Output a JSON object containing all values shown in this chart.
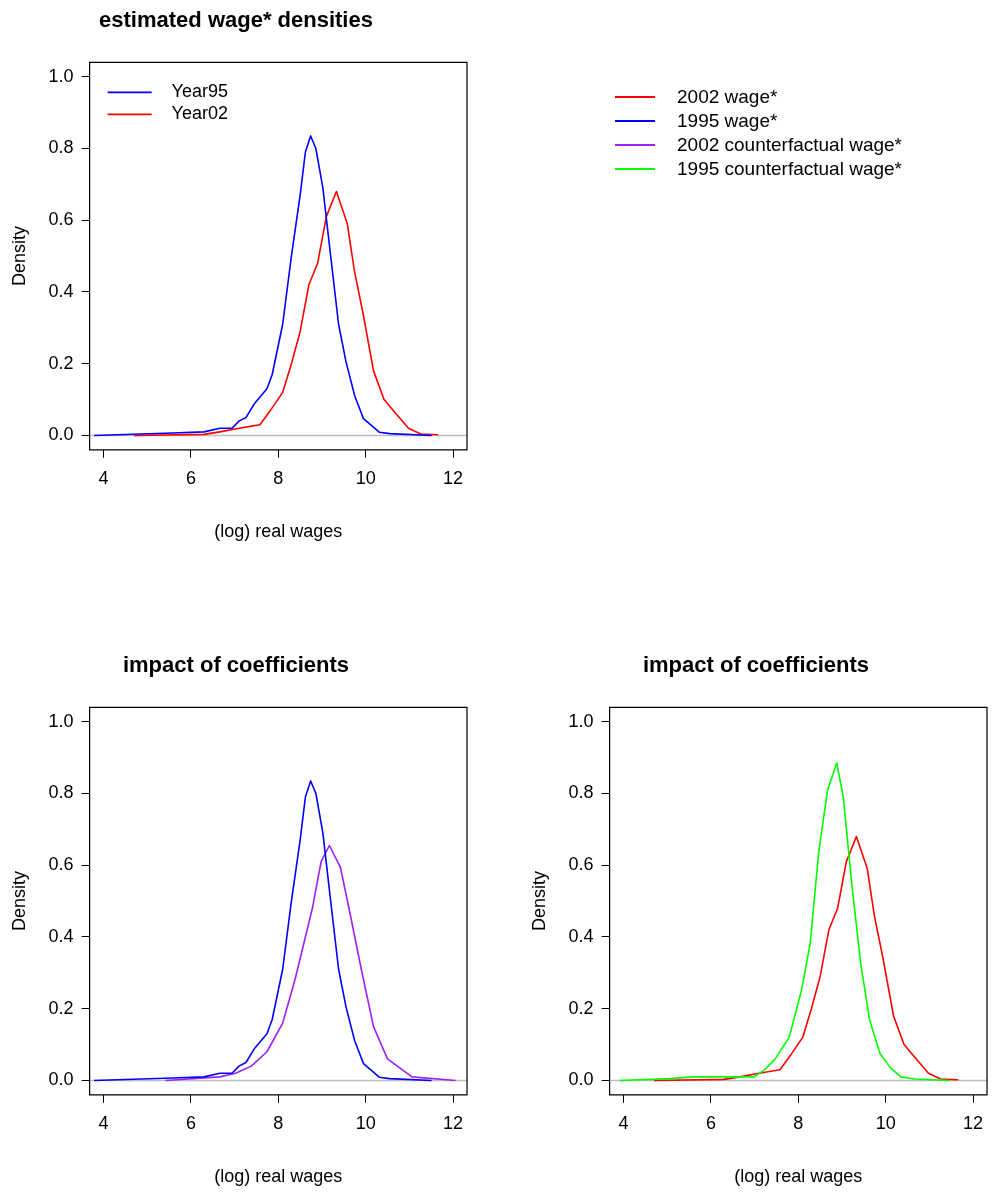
{
  "chart_data": [
    {
      "type": "line",
      "title": "estimated wage* densities",
      "xlabel": "(log) real wages",
      "ylabel": "Density",
      "xlim": [
        3.68,
        12.32
      ],
      "ylim": [
        -0.04,
        1.04
      ],
      "xticks": [
        4,
        6,
        8,
        10,
        12
      ],
      "yticks": [
        {
          "value": 0,
          "label": "0.0"
        },
        {
          "value": 0.2,
          "label": "0.2"
        },
        {
          "value": 0.4,
          "label": "0.4"
        },
        {
          "value": 0.6,
          "label": "0.6"
        },
        {
          "value": 0.8,
          "label": "0.8"
        },
        {
          "value": 1,
          "label": "1.0"
        }
      ],
      "legend": "top left",
      "grid": false,
      "marker": "none",
      "line_style": "solid",
      "ref_lines": [
        {
          "axis": "y",
          "value": 0,
          "color": "#bebebe"
        }
      ],
      "series": [
        {
          "name": "Year95",
          "color": "#0000ff",
          "x": [
            3.78,
            5.58,
            6.3,
            6.66,
            6.94,
            7.1,
            7.26,
            7.46,
            7.74,
            7.86,
            8.1,
            8.3,
            8.5,
            8.62,
            8.74,
            8.86,
            9.02,
            9.18,
            9.38,
            9.55,
            9.75,
            9.95,
            10.31,
            10.55,
            11.51
          ],
          "values": [
            0,
            0.007,
            0.01,
            0.02,
            0.02,
            0.04,
            0.05,
            0.09,
            0.13,
            0.17,
            0.31,
            0.5,
            0.67,
            0.79,
            0.835,
            0.8,
            0.69,
            0.52,
            0.31,
            0.205,
            0.11,
            0.047,
            0.009,
            0.005,
            0
          ]
        },
        {
          "name": "Year02",
          "color": "#ff0000",
          "x": [
            4.7,
            6.3,
            6.66,
            7.1,
            7.58,
            7.82,
            8.1,
            8.3,
            8.5,
            8.7,
            8.9,
            9.1,
            9.33,
            9.58,
            9.74,
            9.94,
            10.18,
            10.42,
            10.7,
            10.98,
            11.26,
            11.66
          ],
          "values": [
            0,
            0.003,
            0.01,
            0.02,
            0.03,
            0.07,
            0.12,
            0.2,
            0.29,
            0.42,
            0.48,
            0.61,
            0.68,
            0.59,
            0.46,
            0.34,
            0.18,
            0.1,
            0.06,
            0.02,
            0.004,
            0.002
          ]
        }
      ]
    },
    {
      "type": "line",
      "title": "impact of coefficients",
      "xlabel": "(log) real wages",
      "ylabel": "Density",
      "xlim": [
        3.68,
        12.32
      ],
      "ylim": [
        -0.04,
        1.04
      ],
      "xticks": [
        4,
        6,
        8,
        10,
        12
      ],
      "yticks": [
        {
          "value": 0,
          "label": "0.0"
        },
        {
          "value": 0.2,
          "label": "0.2"
        },
        {
          "value": 0.4,
          "label": "0.4"
        },
        {
          "value": 0.6,
          "label": "0.6"
        },
        {
          "value": 0.8,
          "label": "0.8"
        },
        {
          "value": 1,
          "label": "1.0"
        }
      ],
      "grid": false,
      "marker": "none",
      "line_style": "solid",
      "ref_lines": [
        {
          "axis": "y",
          "value": 0,
          "color": "#bebebe"
        }
      ],
      "series": [
        {
          "color": "#0000ff",
          "x": [
            3.78,
            5.58,
            6.3,
            6.66,
            6.94,
            7.1,
            7.26,
            7.46,
            7.74,
            7.86,
            8.1,
            8.3,
            8.5,
            8.62,
            8.74,
            8.86,
            9.02,
            9.18,
            9.38,
            9.55,
            9.75,
            9.95,
            10.31,
            10.55,
            11.51
          ],
          "values": [
            0,
            0.007,
            0.01,
            0.02,
            0.02,
            0.04,
            0.05,
            0.09,
            0.13,
            0.17,
            0.31,
            0.5,
            0.67,
            0.79,
            0.835,
            0.8,
            0.69,
            0.52,
            0.31,
            0.205,
            0.11,
            0.047,
            0.009,
            0.005,
            0
          ]
        },
        {
          "color": "#a020f0",
          "x": [
            5.42,
            6.66,
            7.02,
            7.38,
            7.74,
            8.1,
            8.38,
            8.62,
            8.78,
            8.98,
            9.17,
            9.42,
            9.66,
            9.9,
            10.18,
            10.5,
            11.06,
            12.06
          ],
          "values": [
            0,
            0.01,
            0.02,
            0.04,
            0.08,
            0.16,
            0.28,
            0.4,
            0.48,
            0.61,
            0.655,
            0.595,
            0.455,
            0.31,
            0.15,
            0.06,
            0.01,
            0
          ]
        }
      ]
    },
    {
      "type": "line",
      "title": "impact of coefficients",
      "xlabel": "(log) real wages",
      "ylabel": "Density",
      "xlim": [
        3.68,
        12.32
      ],
      "ylim": [
        -0.04,
        1.04
      ],
      "xticks": [
        4,
        6,
        8,
        10,
        12
      ],
      "yticks": [
        {
          "value": 0,
          "label": "0.0"
        },
        {
          "value": 0.2,
          "label": "0.2"
        },
        {
          "value": 0.4,
          "label": "0.4"
        },
        {
          "value": 0.6,
          "label": "0.6"
        },
        {
          "value": 0.8,
          "label": "0.8"
        },
        {
          "value": 1,
          "label": "1.0"
        }
      ],
      "grid": false,
      "marker": "none",
      "line_style": "solid",
      "ref_lines": [
        {
          "axis": "y",
          "value": 0,
          "color": "#bebebe"
        }
      ],
      "series": [
        {
          "color": "#00ff00",
          "x": [
            3.91,
            5.07,
            5.59,
            6.51,
            6.99,
            7.23,
            7.47,
            7.79,
            8.07,
            8.27,
            8.47,
            8.67,
            8.88,
            9.03,
            9.23,
            9.43,
            9.63,
            9.87,
            10.11,
            10.35,
            10.67,
            11.47
          ],
          "values": [
            0,
            0.005,
            0.01,
            0.01,
            0.01,
            0.03,
            0.06,
            0.12,
            0.25,
            0.38,
            0.64,
            0.81,
            0.885,
            0.79,
            0.54,
            0.325,
            0.17,
            0.075,
            0.035,
            0.01,
            0.004,
            0
          ]
        },
        {
          "color": "#ff0000",
          "x": [
            4.7,
            6.3,
            6.66,
            7.1,
            7.58,
            7.82,
            8.1,
            8.3,
            8.5,
            8.7,
            8.9,
            9.1,
            9.33,
            9.58,
            9.74,
            9.94,
            10.18,
            10.42,
            10.7,
            10.98,
            11.26,
            11.66
          ],
          "values": [
            0,
            0.003,
            0.01,
            0.02,
            0.03,
            0.07,
            0.12,
            0.2,
            0.29,
            0.42,
            0.48,
            0.61,
            0.68,
            0.59,
            0.46,
            0.34,
            0.18,
            0.1,
            0.06,
            0.02,
            0.004,
            0.002
          ]
        }
      ]
    },
    {
      "type": "other",
      "legend": "top right",
      "series": [
        {
          "name": "2002 wage*",
          "color": "#ff0000"
        },
        {
          "name": "1995 wage*",
          "color": "#0000ff"
        },
        {
          "name": "2002 counterfactual wage*",
          "color": "#a020f0"
        },
        {
          "name": "1995 counterfactual wage*",
          "color": "#00ff00"
        }
      ]
    }
  ]
}
